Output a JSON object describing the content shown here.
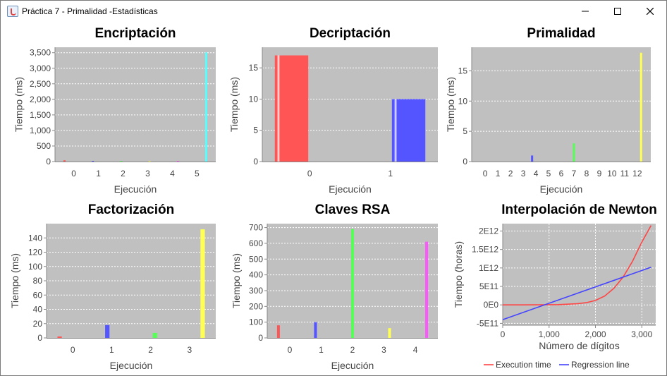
{
  "window": {
    "title": "Práctica 7 - Primalidad -Estadísticas",
    "minimize_icon": "minimize-icon",
    "maximize_icon": "maximize-icon",
    "close_icon": "close-icon"
  },
  "colors": {
    "plot_bg": "#c0c0c0",
    "grid": "#ffffff",
    "red": "#ff5555",
    "blue": "#5555ff",
    "green": "#55ff55",
    "yellow": "#ffff55",
    "magenta": "#ff55ff",
    "cyan": "#55ffff"
  },
  "chart_data": [
    {
      "id": "encriptacion",
      "type": "bar",
      "title": "Encriptación",
      "xlabel": "Ejecución",
      "ylabel": "Tiempo (ms)",
      "categories": [
        "0",
        "1",
        "2",
        "3",
        "4",
        "5"
      ],
      "series": [
        {
          "color": "#ff5555",
          "values": [
            40,
            0,
            0,
            0,
            0,
            0
          ]
        },
        {
          "color": "#5555ff",
          "values": [
            0,
            15,
            0,
            0,
            0,
            0
          ]
        },
        {
          "color": "#55ff55",
          "values": [
            0,
            0,
            3,
            0,
            0,
            0
          ]
        },
        {
          "color": "#ffff55",
          "values": [
            0,
            0,
            0,
            3,
            0,
            0
          ]
        },
        {
          "color": "#ff55ff",
          "values": [
            0,
            0,
            0,
            0,
            12,
            0
          ]
        },
        {
          "color": "#55ffff",
          "values": [
            0,
            0,
            0,
            0,
            0,
            3510
          ]
        }
      ],
      "yticks": [
        0,
        500,
        1000,
        1500,
        2000,
        2500,
        3000,
        3500
      ],
      "ytick_labels": [
        "0",
        "500",
        "1,000",
        "1,500",
        "2,000",
        "2,500",
        "3,000",
        "3,500"
      ],
      "ylim": [
        0,
        3675
      ]
    },
    {
      "id": "decriptacion",
      "type": "bar",
      "title": "Decriptación",
      "xlabel": "Ejecución",
      "ylabel": "Tiempo (ms)",
      "categories": [
        "0",
        "1"
      ],
      "series": [
        {
          "color": "#ff5555",
          "values": [
            17,
            0
          ]
        },
        {
          "color": "#5555ff",
          "values": [
            0,
            10
          ]
        }
      ],
      "yticks": [
        0,
        5,
        10,
        15
      ],
      "ytick_labels": [
        "0",
        "5",
        "10",
        "15"
      ],
      "ylim": [
        0,
        18.3
      ]
    },
    {
      "id": "primalidad",
      "type": "bar",
      "title": "Primalidad",
      "xlabel": "Ejecución",
      "ylabel": "Tiempo (ms)",
      "categories": [
        "0",
        "1",
        "2",
        "3",
        "4",
        "5",
        "6",
        "7",
        "8",
        "9",
        "10",
        "11",
        "12"
      ],
      "series": [
        {
          "color": "#5555ff",
          "values": [
            0,
            0,
            0,
            0,
            1,
            0,
            0,
            0,
            0,
            0,
            0,
            0,
            0
          ]
        },
        {
          "color": "#55ff55",
          "values": [
            0,
            0,
            0,
            0,
            0,
            0,
            0,
            3,
            0,
            0,
            0,
            0,
            0
          ]
        },
        {
          "color": "#ffff55",
          "values": [
            0,
            0,
            0,
            0,
            0,
            0,
            0,
            0,
            0,
            0,
            0,
            0,
            18
          ]
        }
      ],
      "yticks": [
        0,
        5,
        10,
        15
      ],
      "ytick_labels": [
        "0",
        "5",
        "10",
        "15"
      ],
      "ylim": [
        0,
        18.9
      ]
    },
    {
      "id": "factorizacion",
      "type": "bar",
      "title": "Factorización",
      "xlabel": "Ejecución",
      "ylabel": "Tiempo (ms)",
      "categories": [
        "0",
        "1",
        "2",
        "3"
      ],
      "series": [
        {
          "color": "#ff5555",
          "values": [
            2,
            0,
            0,
            0
          ]
        },
        {
          "color": "#5555ff",
          "values": [
            0,
            18,
            0,
            0
          ]
        },
        {
          "color": "#55ff55",
          "values": [
            0,
            0,
            7,
            0
          ]
        },
        {
          "color": "#ffff55",
          "values": [
            0,
            0,
            0,
            152
          ]
        }
      ],
      "yticks": [
        0,
        20,
        40,
        60,
        80,
        100,
        120,
        140
      ],
      "ytick_labels": [
        "0",
        "20",
        "40",
        "60",
        "80",
        "100",
        "120",
        "140"
      ],
      "ylim": [
        0,
        160
      ]
    },
    {
      "id": "claves",
      "type": "bar",
      "title": "Claves RSA",
      "xlabel": "Ejecución",
      "ylabel": "Tiempo (ms)",
      "categories": [
        "0",
        "1",
        "2",
        "3",
        "4"
      ],
      "series": [
        {
          "color": "#ff5555",
          "values": [
            80,
            0,
            0,
            0,
            0
          ]
        },
        {
          "color": "#5555ff",
          "values": [
            0,
            100,
            0,
            0,
            0
          ]
        },
        {
          "color": "#55ff55",
          "values": [
            0,
            0,
            690,
            0,
            0
          ]
        },
        {
          "color": "#ffff55",
          "values": [
            0,
            0,
            0,
            62,
            0
          ]
        },
        {
          "color": "#ff55ff",
          "values": [
            0,
            0,
            0,
            0,
            610
          ]
        }
      ],
      "yticks": [
        0,
        100,
        200,
        300,
        400,
        500,
        600,
        700
      ],
      "ytick_labels": [
        "0",
        "100",
        "200",
        "300",
        "400",
        "500",
        "600",
        "700"
      ],
      "ylim": [
        0,
        725
      ]
    },
    {
      "id": "newton",
      "type": "line",
      "title": "Interpolación de Newton",
      "xlabel": "Número de dígitos",
      "ylabel": "Tiempo (horas)",
      "xticks": [
        0,
        1000,
        2000,
        3000
      ],
      "xtick_labels": [
        "0",
        "1,000",
        "2,000",
        "3,000"
      ],
      "yticks": [
        -500000000000,
        0,
        500000000000,
        1000000000000,
        1500000000000,
        2000000000000
      ],
      "ytick_labels": [
        "-5E11",
        "0E0",
        "5E11",
        "1E12",
        "1.5E12",
        "2E12"
      ],
      "xlim": [
        0,
        3300
      ],
      "ylim": [
        -550000000000,
        2200000000000
      ],
      "series": [
        {
          "name": "Execution time",
          "color": "#ff4444",
          "x": [
            0,
            400,
            800,
            1200,
            1600,
            1800,
            2000,
            2200,
            2400,
            2600,
            2800,
            3000,
            3200
          ],
          "y": [
            0,
            0,
            1000000000,
            8000000000,
            30000000000,
            60000000000,
            120000000000,
            240000000000,
            450000000000,
            760000000000,
            1180000000000,
            1700000000000,
            2150000000000
          ]
        },
        {
          "name": "Regression line",
          "color": "#4444ff",
          "x": [
            0,
            3200
          ],
          "y": [
            -400000000000,
            1020000000000
          ]
        }
      ]
    }
  ]
}
